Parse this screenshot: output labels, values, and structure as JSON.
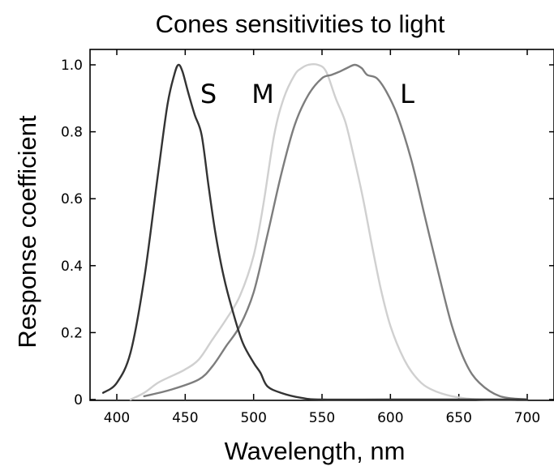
{
  "chart_data": {
    "type": "line",
    "title": "Cones sensitivities to light",
    "xlabel": "Wavelength, nm",
    "ylabel": "Response coefficient",
    "xlim": [
      385,
      720
    ],
    "ylim": [
      0,
      1.03
    ],
    "grid": false,
    "x_ticks": [
      400,
      450,
      500,
      550,
      600,
      650,
      700
    ],
    "x_tick_labels": [
      "400",
      "450",
      "500",
      "550",
      "600",
      "650",
      "700"
    ],
    "y_ticks": [
      0,
      0.2,
      0.4,
      0.6,
      0.8,
      1.0
    ],
    "y_tick_labels": [
      "0",
      "0.2",
      "0.4",
      "0.6",
      "0.8",
      "1.0"
    ],
    "series": [
      {
        "name": "S",
        "color": "#333333",
        "points": [
          [
            390,
            0.02
          ],
          [
            400,
            0.05
          ],
          [
            410,
            0.14
          ],
          [
            420,
            0.36
          ],
          [
            430,
            0.67
          ],
          [
            437,
            0.88
          ],
          [
            442,
            0.97
          ],
          [
            445,
            1.0
          ],
          [
            448,
            0.98
          ],
          [
            452,
            0.92
          ],
          [
            457,
            0.85
          ],
          [
            462,
            0.79
          ],
          [
            467,
            0.64
          ],
          [
            472,
            0.5
          ],
          [
            478,
            0.37
          ],
          [
            485,
            0.26
          ],
          [
            492,
            0.17
          ],
          [
            500,
            0.11
          ],
          [
            505,
            0.08
          ],
          [
            510,
            0.04
          ],
          [
            520,
            0.02
          ],
          [
            535,
            0.005
          ],
          [
            550,
            0.0
          ],
          [
            600,
            0.0
          ],
          [
            700,
            0.0
          ]
        ]
      },
      {
        "name": "M",
        "color": "#d0d0d0",
        "points": [
          [
            410,
            0.0
          ],
          [
            420,
            0.02
          ],
          [
            430,
            0.05
          ],
          [
            440,
            0.07
          ],
          [
            450,
            0.09
          ],
          [
            460,
            0.12
          ],
          [
            470,
            0.18
          ],
          [
            480,
            0.24
          ],
          [
            490,
            0.31
          ],
          [
            500,
            0.43
          ],
          [
            507,
            0.58
          ],
          [
            515,
            0.79
          ],
          [
            522,
            0.9
          ],
          [
            530,
            0.97
          ],
          [
            535,
            0.99
          ],
          [
            540,
            1.0
          ],
          [
            547,
            1.0
          ],
          [
            553,
            0.98
          ],
          [
            560,
            0.9
          ],
          [
            567,
            0.83
          ],
          [
            573,
            0.73
          ],
          [
            580,
            0.6
          ],
          [
            587,
            0.45
          ],
          [
            593,
            0.33
          ],
          [
            600,
            0.22
          ],
          [
            610,
            0.12
          ],
          [
            620,
            0.06
          ],
          [
            630,
            0.03
          ],
          [
            645,
            0.01
          ],
          [
            665,
            0.0
          ],
          [
            700,
            0.0
          ]
        ]
      },
      {
        "name": "L",
        "color": "#7d7d7d",
        "points": [
          [
            420,
            0.01
          ],
          [
            440,
            0.03
          ],
          [
            460,
            0.06
          ],
          [
            470,
            0.1
          ],
          [
            480,
            0.16
          ],
          [
            490,
            0.22
          ],
          [
            500,
            0.32
          ],
          [
            510,
            0.49
          ],
          [
            520,
            0.67
          ],
          [
            530,
            0.82
          ],
          [
            540,
            0.91
          ],
          [
            550,
            0.96
          ],
          [
            557,
            0.97
          ],
          [
            563,
            0.98
          ],
          [
            568,
            0.99
          ],
          [
            574,
            1.0
          ],
          [
            579,
            0.99
          ],
          [
            583,
            0.97
          ],
          [
            590,
            0.96
          ],
          [
            597,
            0.92
          ],
          [
            605,
            0.85
          ],
          [
            615,
            0.72
          ],
          [
            625,
            0.55
          ],
          [
            635,
            0.38
          ],
          [
            645,
            0.22
          ],
          [
            655,
            0.11
          ],
          [
            665,
            0.05
          ],
          [
            680,
            0.01
          ],
          [
            700,
            0.0
          ]
        ]
      }
    ]
  }
}
